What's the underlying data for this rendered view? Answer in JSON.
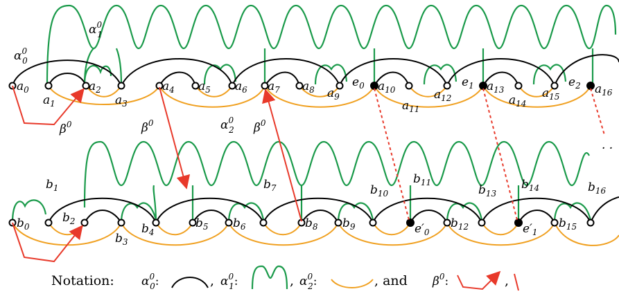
{
  "colors": {
    "alpha0": "#000000",
    "alpha1": "#1a9a4a",
    "alpha2": "#f0a020",
    "beta": "#e8392a",
    "vertex_fill_open": "#ffffff",
    "vertex_fill_closed": "#000000"
  },
  "top_row": {
    "alpha1_label": "α",
    "alpha1_sup": "0",
    "alpha1_sub": "1",
    "alpha0_label": "α",
    "alpha0_sup": "0",
    "alpha0_sub": "0",
    "vertices": [
      {
        "name": "a",
        "idx": "0"
      },
      {
        "name": "a",
        "idx": "1"
      },
      {
        "name": "a",
        "idx": "2"
      },
      {
        "name": "a",
        "idx": "3"
      },
      {
        "name": "a",
        "idx": "4"
      },
      {
        "name": "a",
        "idx": "5"
      },
      {
        "name": "a",
        "idx": "6"
      },
      {
        "name": "a",
        "idx": "7"
      },
      {
        "name": "a",
        "idx": "8"
      },
      {
        "name": "a",
        "idx": "9"
      },
      {
        "name": "e",
        "idx": "0"
      },
      {
        "name": "a",
        "idx": "10"
      },
      {
        "name": "a",
        "idx": "11"
      },
      {
        "name": "a",
        "idx": "12"
      },
      {
        "name": "e",
        "idx": "1"
      },
      {
        "name": "a",
        "idx": "13"
      },
      {
        "name": "a",
        "idx": "14"
      },
      {
        "name": "a",
        "idx": "15"
      },
      {
        "name": "e",
        "idx": "2"
      },
      {
        "name": "a",
        "idx": "16"
      }
    ],
    "beta_left": "β",
    "beta_left_sup": "0",
    "beta_mid1": "β",
    "beta_mid1_sup": "0",
    "alpha2_label": "α",
    "alpha2_sup": "0",
    "alpha2_sub": "2",
    "beta_mid2": "β",
    "beta_mid2_sup": "0"
  },
  "bottom_row": {
    "vertices": [
      {
        "name": "b",
        "idx": "0"
      },
      {
        "name": "b",
        "idx": "1"
      },
      {
        "name": "b",
        "idx": "2"
      },
      {
        "name": "b",
        "idx": "3"
      },
      {
        "name": "b",
        "idx": "4"
      },
      {
        "name": "b",
        "idx": "5"
      },
      {
        "name": "b",
        "idx": "6"
      },
      {
        "name": "b",
        "idx": "7"
      },
      {
        "name": "b",
        "idx": "8"
      },
      {
        "name": "b",
        "idx": "9"
      },
      {
        "name": "b",
        "idx": "10"
      },
      {
        "name": "b",
        "idx": "11"
      },
      {
        "name": "e′",
        "idx": "0"
      },
      {
        "name": "b",
        "idx": "12"
      },
      {
        "name": "b",
        "idx": "13"
      },
      {
        "name": "b",
        "idx": "14"
      },
      {
        "name": "e′",
        "idx": "1"
      },
      {
        "name": "b",
        "idx": "15"
      },
      {
        "name": "b",
        "idx": "16"
      }
    ],
    "dots": "· ·"
  },
  "notation": {
    "prefix": "Notation:",
    "a0": "α",
    "a0_sup": "0",
    "a0_sub": "0",
    "a1": "α",
    "a1_sup": "0",
    "a1_sub": "1",
    "a2": "α",
    "a2_sup": "0",
    "a2_sub": "2",
    "and_text": ",  and",
    "beta": "β",
    "beta_sup": "0",
    "colon": ":",
    "comma": ","
  }
}
